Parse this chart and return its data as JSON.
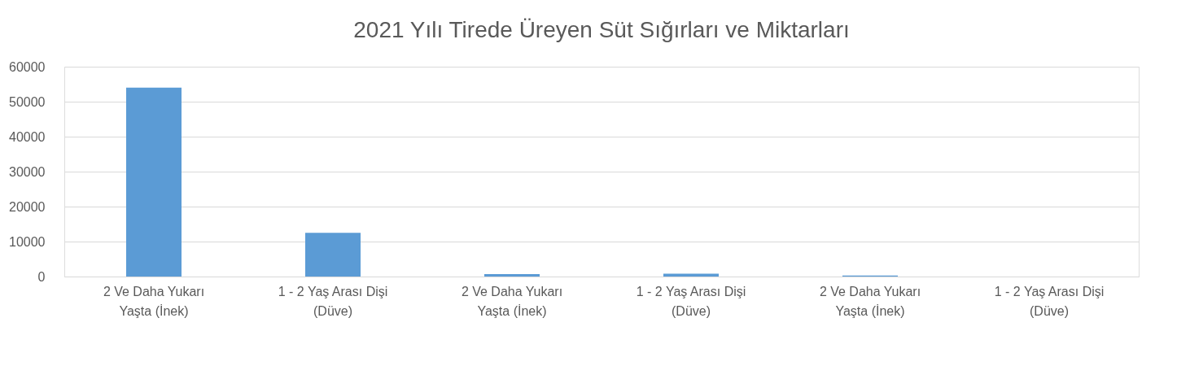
{
  "chart_data": {
    "type": "bar",
    "title": "2021 Yılı Tirede Üreyen  Süt Sığırları ve Miktarları",
    "categories": [
      "2 Ve Daha Yukarı Yaşta (İnek)",
      "1 - 2 Yaş Arası Dişi (Düve)",
      "2 Ve Daha Yukarı Yaşta (İnek)",
      "1 - 2 Yaş Arası Dişi (Düve)",
      "2 Ve Daha Yukarı Yaşta (İnek)",
      "1 - 2 Yaş Arası Dişi (Düve)"
    ],
    "values": [
      54000,
      12500,
      700,
      800,
      300,
      0
    ],
    "color": "#5b9bd5",
    "ylim": [
      0,
      60000
    ],
    "yticks": [
      0,
      10000,
      20000,
      30000,
      40000,
      50000,
      60000
    ],
    "grid": "y"
  }
}
